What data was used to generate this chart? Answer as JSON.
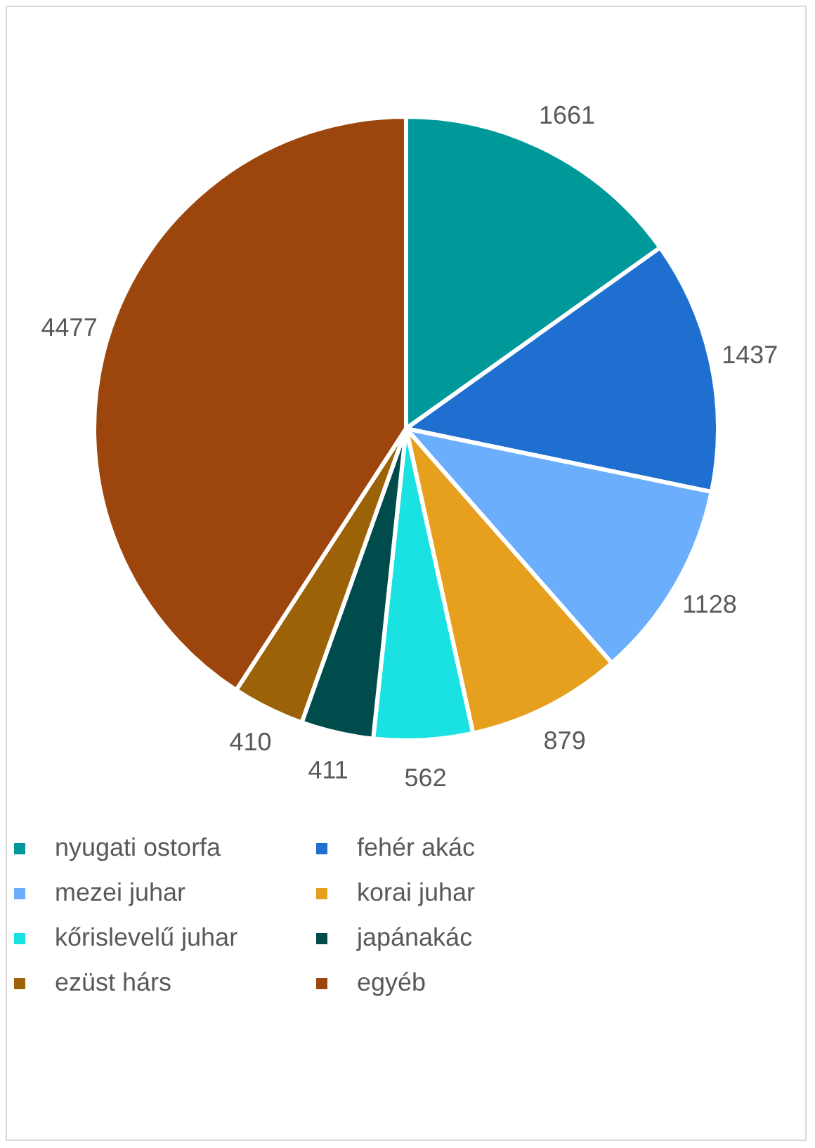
{
  "chart_data": {
    "type": "pie",
    "categories": [
      "nyugati ostorfa",
      "fehér akác",
      "mezei juhar",
      "korai juhar",
      "kőrislevelű juhar",
      "japánakác",
      "ezüst hárs",
      "egyéb"
    ],
    "values": [
      1661,
      1437,
      1128,
      879,
      562,
      411,
      410,
      4477
    ],
    "colors": [
      "#009999",
      "#1f6fd0",
      "#6aaefc",
      "#e6a01e",
      "#1ae2e2",
      "#004c4c",
      "#9c6208",
      "#9c450d"
    ],
    "data_labels": true,
    "legend": "bottom"
  }
}
